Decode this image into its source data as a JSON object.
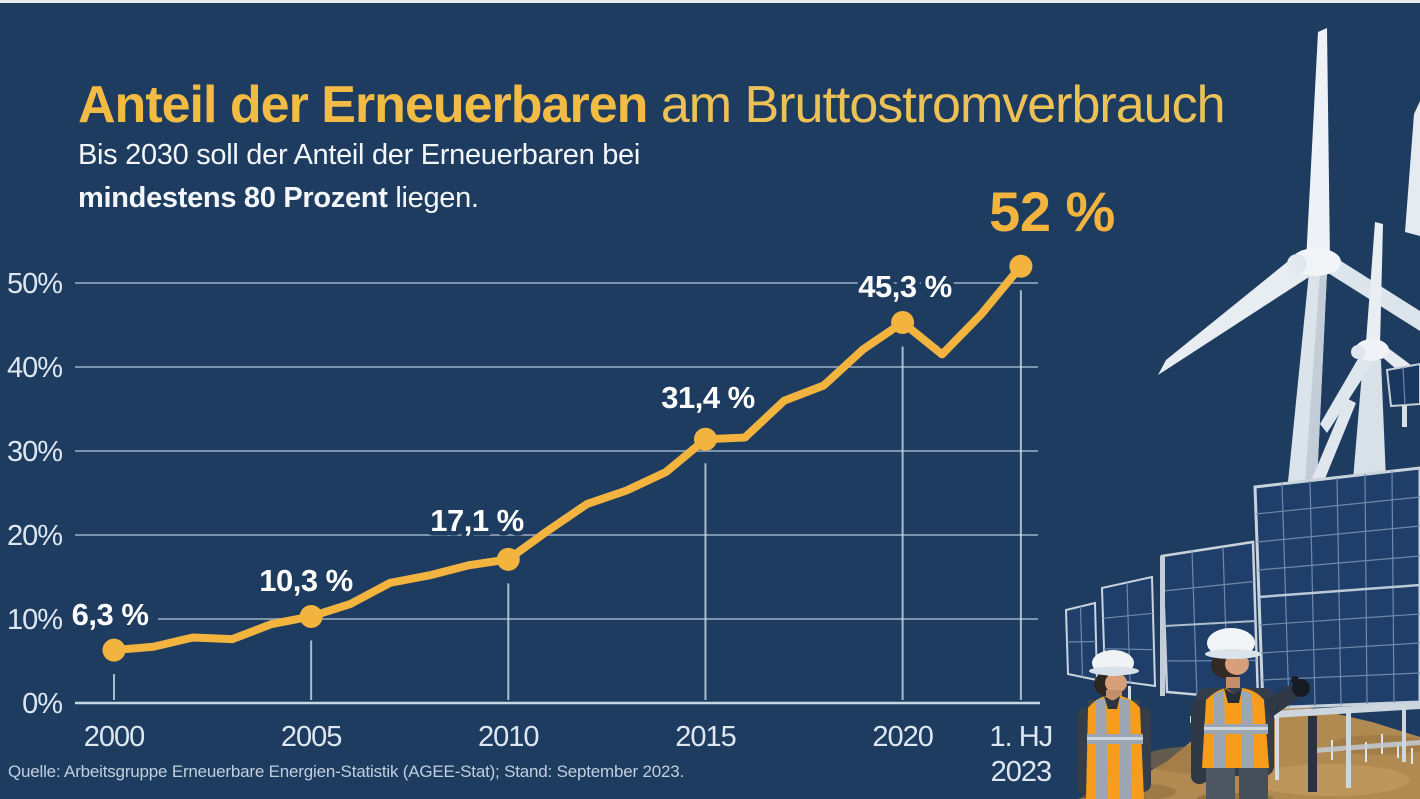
{
  "title": {
    "highlight": "Anteil der Erneuerbaren",
    "rest": " am Bruttostromverbrauch"
  },
  "subtitle": {
    "line1": "Bis 2030 soll der Anteil der Erneuerbaren bei",
    "bold": "mindestens 80 Prozent",
    "after_bold": " liegen."
  },
  "source": "Quelle: Arbeitsgruppe Erneuerbare Energien-Statistik (AGEE-Stat); Stand: September 2023.",
  "colors": {
    "background": "#1e3c60",
    "accent_yellow": "#f2b43e",
    "label_white": "#ffffff",
    "grid_blue": "#c6d6e5",
    "source_text": "#c0cfdd",
    "vest_orange": "#f79d1b"
  },
  "chart_data": {
    "type": "line",
    "title": "Anteil der Erneuerbaren am Bruttostromverbrauch",
    "x": [
      "2000",
      "2001",
      "2002",
      "2003",
      "2004",
      "2005",
      "2006",
      "2007",
      "2008",
      "2009",
      "2010",
      "2011",
      "2012",
      "2013",
      "2014",
      "2015",
      "2016",
      "2017",
      "2018",
      "2019",
      "2020",
      "2021",
      "2022",
      "1. HJ 2023"
    ],
    "values": [
      6.3,
      6.7,
      7.8,
      7.6,
      9.4,
      10.3,
      11.8,
      14.3,
      15.2,
      16.4,
      17.1,
      20.5,
      23.7,
      25.3,
      27.5,
      31.4,
      31.6,
      36.0,
      37.8,
      42.1,
      45.3,
      41.5,
      46.3,
      52.0
    ],
    "labeled_points": [
      {
        "index": 0,
        "label": "6,3 %"
      },
      {
        "index": 5,
        "label": "10,3 %"
      },
      {
        "index": 10,
        "label": "17,1 %"
      },
      {
        "index": 15,
        "label": "31,4 %"
      },
      {
        "index": 20,
        "label": "45,3 %"
      },
      {
        "index": 23,
        "label": "52 %",
        "emphasis": true
      }
    ],
    "x_ticks": [
      {
        "index": 0,
        "label": "2000"
      },
      {
        "index": 5,
        "label": "2005"
      },
      {
        "index": 10,
        "label": "2010"
      },
      {
        "index": 15,
        "label": "2015"
      },
      {
        "index": 20,
        "label": "2020"
      },
      {
        "index": 23,
        "label": "1. HJ",
        "label2": "2023"
      }
    ],
    "y_ticks": [
      "0%",
      "10%",
      "20%",
      "30%",
      "40%",
      "50%"
    ],
    "ylim": [
      0,
      55
    ],
    "grid": true,
    "legend": "none",
    "line_color": "#f2b43e"
  }
}
